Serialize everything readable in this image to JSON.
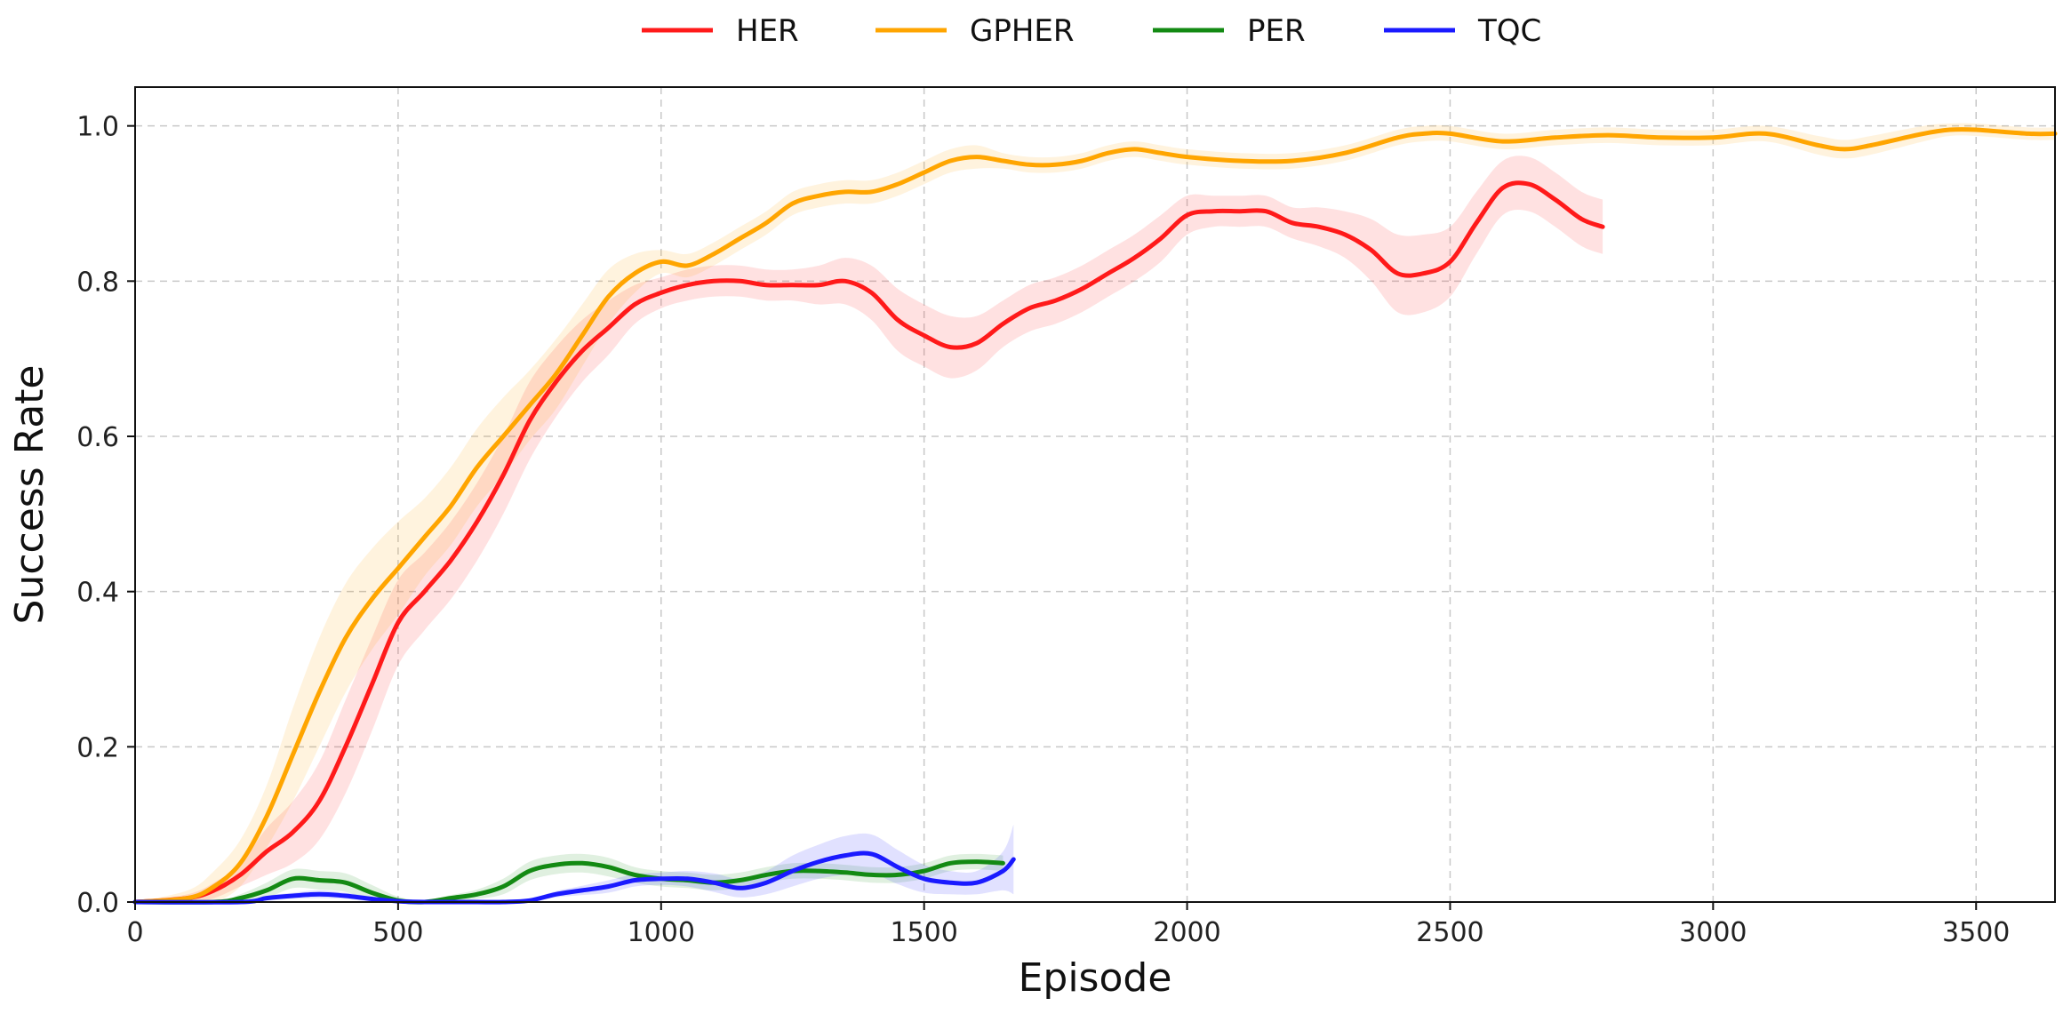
{
  "chart_data": {
    "type": "line",
    "xlabel": "Episode",
    "ylabel": "Success Rate",
    "xlim": [
      0,
      3650
    ],
    "ylim": [
      0,
      1.05
    ],
    "xticks": [
      0,
      500,
      1000,
      1500,
      2000,
      2500,
      3000,
      3500
    ],
    "yticks": [
      0.0,
      0.2,
      0.4,
      0.6,
      0.8,
      1.0
    ],
    "xtick_labels": [
      "0",
      "500",
      "1000",
      "1500",
      "2000",
      "2500",
      "3000",
      "3500"
    ],
    "ytick_labels": [
      "0.0",
      "0.2",
      "0.4",
      "0.6",
      "0.8",
      "1.0"
    ],
    "grid": true,
    "legend_position": "top-center",
    "series": [
      {
        "name": "HER",
        "color": "#ff1a1a",
        "x": [
          0,
          100,
          150,
          200,
          250,
          300,
          350,
          400,
          450,
          500,
          550,
          600,
          650,
          700,
          750,
          800,
          850,
          900,
          950,
          1000,
          1050,
          1100,
          1150,
          1200,
          1250,
          1300,
          1350,
          1400,
          1450,
          1500,
          1550,
          1600,
          1650,
          1700,
          1750,
          1800,
          1850,
          1900,
          1950,
          2000,
          2050,
          2100,
          2150,
          2200,
          2250,
          2300,
          2350,
          2400,
          2450,
          2500,
          2550,
          2600,
          2650,
          2700,
          2750,
          2790
        ],
        "y": [
          0.0,
          0.005,
          0.015,
          0.035,
          0.065,
          0.09,
          0.13,
          0.2,
          0.28,
          0.36,
          0.4,
          0.44,
          0.49,
          0.55,
          0.62,
          0.67,
          0.71,
          0.74,
          0.77,
          0.785,
          0.795,
          0.8,
          0.8,
          0.795,
          0.795,
          0.795,
          0.8,
          0.785,
          0.75,
          0.73,
          0.715,
          0.72,
          0.745,
          0.765,
          0.775,
          0.79,
          0.81,
          0.83,
          0.855,
          0.885,
          0.89,
          0.89,
          0.89,
          0.875,
          0.87,
          0.86,
          0.84,
          0.81,
          0.81,
          0.825,
          0.875,
          0.92,
          0.925,
          0.905,
          0.88,
          0.87
        ],
        "band": [
          0.0,
          0.005,
          0.01,
          0.015,
          0.03,
          0.04,
          0.05,
          0.06,
          0.06,
          0.055,
          0.05,
          0.05,
          0.05,
          0.05,
          0.05,
          0.045,
          0.04,
          0.035,
          0.025,
          0.02,
          0.02,
          0.02,
          0.02,
          0.02,
          0.02,
          0.025,
          0.03,
          0.035,
          0.04,
          0.04,
          0.04,
          0.035,
          0.03,
          0.03,
          0.03,
          0.03,
          0.03,
          0.03,
          0.03,
          0.025,
          0.02,
          0.02,
          0.02,
          0.02,
          0.025,
          0.03,
          0.04,
          0.05,
          0.05,
          0.045,
          0.04,
          0.035,
          0.035,
          0.035,
          0.035,
          0.035
        ]
      },
      {
        "name": "GPHER",
        "color": "#ffa500",
        "x": [
          0,
          100,
          150,
          200,
          250,
          300,
          350,
          400,
          450,
          500,
          550,
          600,
          650,
          700,
          750,
          800,
          850,
          900,
          950,
          1000,
          1050,
          1100,
          1150,
          1200,
          1250,
          1300,
          1350,
          1400,
          1450,
          1500,
          1550,
          1600,
          1650,
          1700,
          1750,
          1800,
          1850,
          1900,
          1950,
          2000,
          2100,
          2200,
          2300,
          2400,
          2450,
          2500,
          2600,
          2700,
          2800,
          2900,
          3000,
          3100,
          3200,
          3250,
          3300,
          3400,
          3450,
          3500,
          3600,
          3650
        ],
        "y": [
          0.0,
          0.005,
          0.02,
          0.05,
          0.11,
          0.19,
          0.27,
          0.34,
          0.39,
          0.43,
          0.47,
          0.51,
          0.56,
          0.6,
          0.64,
          0.68,
          0.73,
          0.78,
          0.81,
          0.825,
          0.82,
          0.835,
          0.855,
          0.875,
          0.9,
          0.91,
          0.915,
          0.915,
          0.925,
          0.94,
          0.955,
          0.96,
          0.955,
          0.95,
          0.95,
          0.955,
          0.965,
          0.97,
          0.965,
          0.96,
          0.955,
          0.955,
          0.965,
          0.985,
          0.99,
          0.99,
          0.98,
          0.985,
          0.988,
          0.985,
          0.985,
          0.99,
          0.975,
          0.97,
          0.975,
          0.99,
          0.995,
          0.995,
          0.99,
          0.99
        ],
        "band": [
          0.0,
          0.01,
          0.02,
          0.03,
          0.04,
          0.06,
          0.07,
          0.07,
          0.065,
          0.06,
          0.05,
          0.05,
          0.05,
          0.05,
          0.045,
          0.045,
          0.04,
          0.035,
          0.025,
          0.015,
          0.015,
          0.015,
          0.015,
          0.015,
          0.015,
          0.015,
          0.015,
          0.015,
          0.015,
          0.015,
          0.015,
          0.015,
          0.01,
          0.01,
          0.01,
          0.01,
          0.01,
          0.01,
          0.01,
          0.01,
          0.01,
          0.01,
          0.01,
          0.01,
          0.01,
          0.01,
          0.01,
          0.01,
          0.01,
          0.01,
          0.01,
          0.01,
          0.012,
          0.012,
          0.012,
          0.01,
          0.008,
          0.008,
          0.008,
          0.008
        ]
      },
      {
        "name": "PER",
        "color": "#138a13",
        "x": [
          0,
          150,
          200,
          250,
          300,
          350,
          400,
          450,
          500,
          550,
          600,
          650,
          700,
          750,
          800,
          850,
          900,
          950,
          1000,
          1050,
          1100,
          1150,
          1200,
          1250,
          1300,
          1350,
          1400,
          1450,
          1500,
          1550,
          1600,
          1650
        ],
        "y": [
          0.0,
          0.0,
          0.005,
          0.015,
          0.03,
          0.028,
          0.025,
          0.012,
          0.002,
          0.0,
          0.005,
          0.01,
          0.02,
          0.04,
          0.048,
          0.05,
          0.045,
          0.035,
          0.03,
          0.028,
          0.025,
          0.028,
          0.035,
          0.04,
          0.04,
          0.038,
          0.035,
          0.035,
          0.04,
          0.05,
          0.052,
          0.05
        ],
        "band": [
          0.0,
          0.0,
          0.005,
          0.01,
          0.012,
          0.012,
          0.012,
          0.01,
          0.005,
          0.002,
          0.004,
          0.006,
          0.01,
          0.012,
          0.012,
          0.012,
          0.012,
          0.01,
          0.01,
          0.01,
          0.01,
          0.01,
          0.01,
          0.01,
          0.01,
          0.01,
          0.01,
          0.01,
          0.01,
          0.01,
          0.01,
          0.01
        ]
      },
      {
        "name": "TQC",
        "color": "#1a1aff",
        "x": [
          0,
          200,
          250,
          300,
          350,
          400,
          450,
          500,
          550,
          600,
          650,
          700,
          750,
          800,
          850,
          900,
          950,
          1000,
          1050,
          1100,
          1150,
          1200,
          1250,
          1300,
          1350,
          1400,
          1450,
          1500,
          1550,
          1600,
          1650,
          1670
        ],
        "y": [
          0.0,
          0.0,
          0.005,
          0.008,
          0.01,
          0.008,
          0.004,
          0.001,
          0.0,
          0.0,
          0.0,
          0.0,
          0.002,
          0.01,
          0.015,
          0.02,
          0.028,
          0.03,
          0.03,
          0.025,
          0.018,
          0.025,
          0.04,
          0.052,
          0.06,
          0.062,
          0.045,
          0.03,
          0.025,
          0.025,
          0.04,
          0.055
        ],
        "band": [
          0.0,
          0.0,
          0.003,
          0.004,
          0.005,
          0.004,
          0.003,
          0.001,
          0.0,
          0.0,
          0.0,
          0.0,
          0.002,
          0.004,
          0.006,
          0.008,
          0.008,
          0.008,
          0.01,
          0.012,
          0.012,
          0.015,
          0.02,
          0.022,
          0.025,
          0.025,
          0.022,
          0.018,
          0.015,
          0.015,
          0.025,
          0.045
        ]
      }
    ]
  }
}
